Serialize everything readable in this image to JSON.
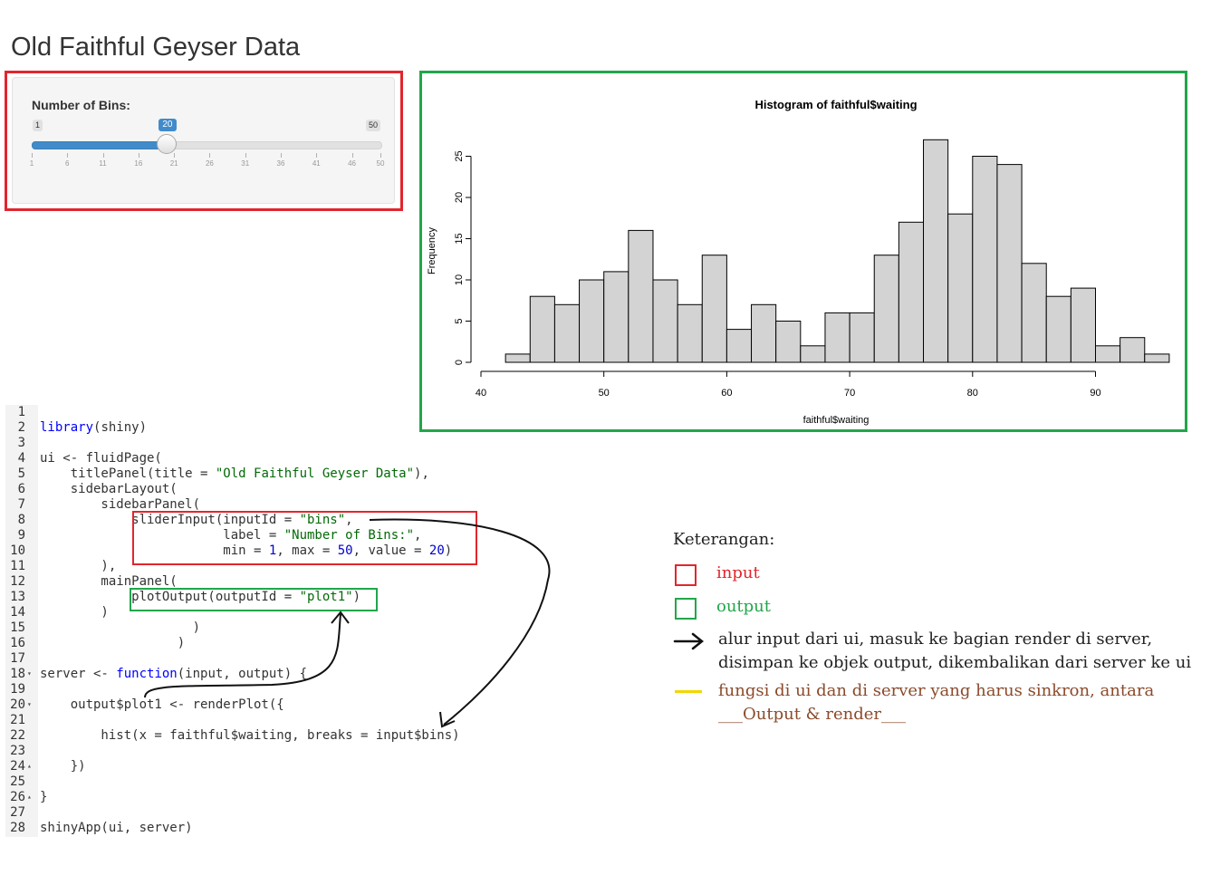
{
  "app": {
    "title": "Old Faithful Geyser Data"
  },
  "slider": {
    "label": "Number of Bins:",
    "min": "1",
    "max": "50",
    "value": "20",
    "value_fraction": 0.388,
    "grid_labels": [
      "1",
      "6",
      "11",
      "16",
      "21",
      "26",
      "31",
      "36",
      "41",
      "46",
      "50"
    ],
    "accent_color": "#428bca"
  },
  "chart_data": {
    "type": "bar",
    "title": "Histogram of faithful$waiting",
    "xlabel": "faithful$waiting",
    "ylabel": "Frequency",
    "xlim": [
      40,
      96
    ],
    "ylim": [
      0,
      27
    ],
    "xticks": [
      "40",
      "50",
      "60",
      "70",
      "80",
      "90"
    ],
    "yticks": [
      "0",
      "5",
      "10",
      "15",
      "20",
      "25"
    ],
    "bin_width": 2,
    "bin_starts": [
      42,
      44,
      46,
      48,
      50,
      52,
      54,
      56,
      58,
      60,
      62,
      64,
      66,
      68,
      70,
      72,
      74,
      76,
      78,
      80,
      82,
      84,
      86,
      88,
      90,
      92,
      94
    ],
    "values": [
      1,
      8,
      7,
      10,
      11,
      16,
      10,
      7,
      13,
      4,
      7,
      5,
      2,
      6,
      6,
      13,
      17,
      27,
      18,
      25,
      24,
      12,
      8,
      9,
      2,
      3,
      1
    ],
    "bar_fill": "#d3d3d3",
    "grid": false
  },
  "code": {
    "lines": [
      "",
      "library(shiny)",
      "",
      "ui <- fluidPage(",
      "    titlePanel(title = \"Old Faithful Geyser Data\"),",
      "    sidebarLayout(",
      "        sidebarPanel(",
      "            sliderInput(inputId = \"bins\",",
      "                        label = \"Number of Bins:\",",
      "                        min = 1, max = 50, value = 20)",
      "        ),",
      "        mainPanel(",
      "            plotOutput(outputId = \"plot1\")",
      "        )",
      "                    )",
      "                  )",
      "",
      "server <- function(input, output) {",
      "",
      "    output$plot1 <- renderPlot({",
      "",
      "        hist(x = faithful$waiting, breaks = input$bins)",
      "",
      "    })",
      "",
      "}",
      "",
      "shinyApp(ui, server)"
    ]
  },
  "legend": {
    "title": "Keterangan:",
    "input_label": "input",
    "output_label": "output",
    "arrow_text_1": "alur input dari ui, masuk ke bagian render di server,",
    "arrow_text_2": "disimpan ke objek output, dikembalikan dari server ke ui",
    "yellow_text_1": "fungsi di ui dan di server yang harus sinkron, antara",
    "yellow_text_2": "___Output & render___",
    "colors": {
      "input": "#e1262d",
      "output": "#22a64a",
      "yellow": "#f2d600",
      "brown": "#8b4a2b"
    }
  }
}
